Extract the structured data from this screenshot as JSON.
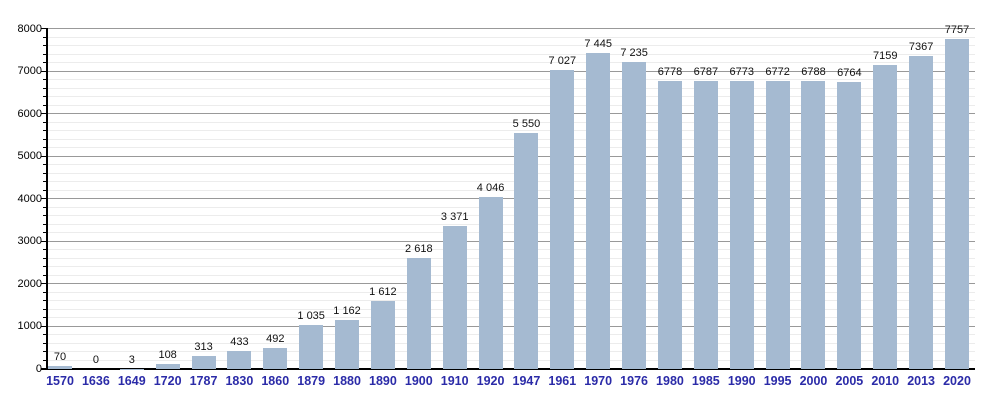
{
  "chart_data": {
    "type": "bar",
    "title": "",
    "categories": [
      "1570",
      "1636",
      "1649",
      "1720",
      "1787",
      "1830",
      "1860",
      "1879",
      "1880",
      "1890",
      "1900",
      "1910",
      "1920",
      "1947",
      "1961",
      "1970",
      "1976",
      "1980",
      "1985",
      "1990",
      "1995",
      "2000",
      "2005",
      "2010",
      "2013",
      "2020"
    ],
    "values": [
      70,
      0,
      3,
      108,
      313,
      433,
      492,
      1035,
      1162,
      1612,
      2618,
      3371,
      4046,
      5550,
      7027,
      7445,
      7235,
      6778,
      6787,
      6773,
      6772,
      6788,
      6764,
      7159,
      7367,
      7757
    ],
    "value_labels": [
      "70",
      "0",
      "3",
      "108",
      "313",
      "433",
      "492",
      "1 035",
      "1 162",
      "1 612",
      "2 618",
      "3 371",
      "4 046",
      "5 550",
      "7 027",
      "7 445",
      "7 235",
      "6778",
      "6787",
      "6773",
      "6772",
      "6788",
      "6764",
      "7159",
      "7367",
      "7757"
    ],
    "xlabel": "",
    "ylabel": "",
    "ylim": [
      0,
      8000
    ],
    "y_major_step": 1000,
    "y_minor_step": 200,
    "y_tick_labels": [
      "0",
      "1000",
      "2000",
      "3000",
      "4000",
      "5000",
      "6000",
      "7000",
      "8000"
    ],
    "grid": "on",
    "legend": "none",
    "colors": {
      "bar_fill": "#a5bad1",
      "grid_major": "#999999",
      "grid_minor": "#ececec",
      "axis": "#000000",
      "x_tick_label": "#2b2ba8",
      "value_label": "#111111",
      "y_tick_label": "#000000",
      "background": "#ffffff"
    }
  }
}
